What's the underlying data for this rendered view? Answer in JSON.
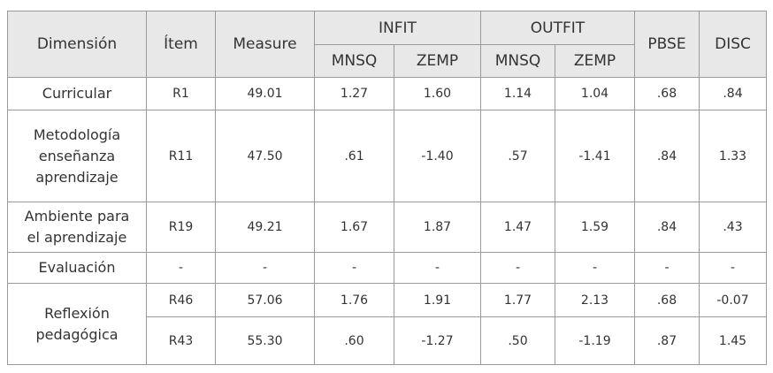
{
  "table": {
    "header": {
      "dimension": "Dimensión",
      "item": "Ítem",
      "measure": "Measure",
      "infit": "INFIT",
      "outfit": "OUTFIT",
      "pbse": "PBSE",
      "disc": "DISC",
      "sub": [
        "MNSQ",
        "ZEMP",
        "MNSQ",
        "ZEMP"
      ]
    },
    "rows": [
      {
        "dimension": "Curricular",
        "items": [
          [
            "R1",
            "49.01",
            "1.27",
            "1.60",
            "1.14",
            "1.04",
            ".68",
            ".84"
          ]
        ]
      },
      {
        "dimension": "Metodología enseñanza aprendizaje",
        "items": [
          [
            "R11",
            "47.50",
            ".61",
            "-1.40",
            ".57",
            "-1.41",
            ".84",
            "1.33"
          ]
        ]
      },
      {
        "dimension": "Ambiente para el aprendizaje",
        "items": [
          [
            "R19",
            "49.21",
            "1.67",
            "1.87",
            "1.47",
            "1.59",
            ".84",
            ".43"
          ]
        ]
      },
      {
        "dimension": "Evaluación",
        "items": [
          [
            "-",
            "-",
            "-",
            "-",
            "-",
            "-",
            "-",
            "-"
          ]
        ]
      },
      {
        "dimension": "Reflexión pedagógica",
        "items": [
          [
            "R46",
            "57.06",
            "1.76",
            "1.91",
            "1.77",
            "2.13",
            ".68",
            "-0.07"
          ],
          [
            "R43",
            "55.30",
            ".60",
            "-1.27",
            ".50",
            "-1.19",
            ".87",
            "1.45"
          ]
        ]
      }
    ]
  }
}
